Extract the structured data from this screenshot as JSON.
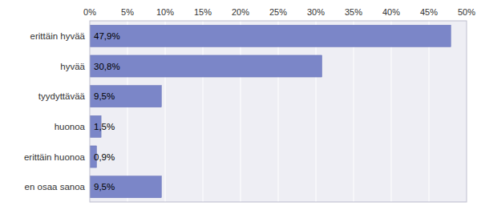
{
  "chart_data": {
    "type": "bar",
    "orientation": "horizontal",
    "categories": [
      "en osaa sanoa",
      "erittäin huonoa",
      "huonoa",
      "tyydyttävää",
      "hyvää",
      "erittäin hyvää"
    ],
    "values": [
      9.5,
      0.9,
      1.5,
      9.5,
      30.8,
      47.9
    ],
    "value_labels": [
      "9,5%",
      "0,9%",
      "1,5%",
      "9,5%",
      "30,8%",
      "47,9%"
    ],
    "data_labels": true,
    "color": "#7b86c8",
    "xlim": [
      0,
      50
    ],
    "xticks": [
      {
        "value": 0,
        "label": "0%"
      },
      {
        "value": 5,
        "label": "5%"
      },
      {
        "value": 10,
        "label": "10%"
      },
      {
        "value": 15,
        "label": "15%"
      },
      {
        "value": 20,
        "label": "20%"
      },
      {
        "value": 25,
        "label": "25%"
      },
      {
        "value": 30,
        "label": "30%"
      },
      {
        "value": 35,
        "label": "35%"
      },
      {
        "value": 40,
        "label": "40%"
      },
      {
        "value": 45,
        "label": "45%"
      },
      {
        "value": 50,
        "label": "50%"
      }
    ],
    "grid": true
  }
}
